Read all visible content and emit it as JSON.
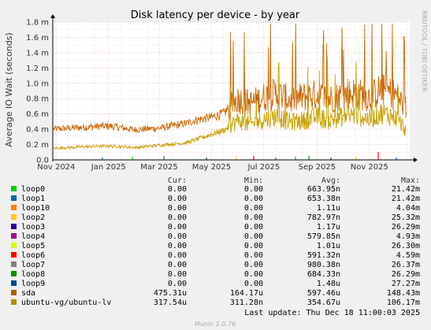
{
  "chart_data": {
    "type": "line",
    "title": "Disk latency per device - by year",
    "ylabel": "Average IO Wait (seconds)",
    "side_label": "RRDTOOL / TOBI OETIKER",
    "ylim": [
      0,
      1.8
    ],
    "y_ticks": [
      {
        "value": 0,
        "label": "0.0"
      },
      {
        "value": 0.2,
        "label": "0.2 m"
      },
      {
        "value": 0.4,
        "label": "0.4 m"
      },
      {
        "value": 0.6,
        "label": "0.6 m"
      },
      {
        "value": 0.8,
        "label": "0.8 m"
      },
      {
        "value": 1.0,
        "label": "1.0 m"
      },
      {
        "value": 1.2,
        "label": "1.2 m"
      },
      {
        "value": 1.4,
        "label": "1.4 m"
      },
      {
        "value": 1.6,
        "label": "1.6 m"
      },
      {
        "value": 1.8,
        "label": "1.8 m"
      }
    ],
    "x_range": [
      "2024-10-28",
      "2025-12-18"
    ],
    "x_ticks": [
      {
        "date": "2024-11-01",
        "label": "Nov 2024"
      },
      {
        "date": "2025-01-01",
        "label": "Jan 2025"
      },
      {
        "date": "2025-03-01",
        "label": "Mar 2025"
      },
      {
        "date": "2025-05-01",
        "label": "May 2025"
      },
      {
        "date": "2025-07-01",
        "label": "Jul 2025"
      },
      {
        "date": "2025-09-01",
        "label": "Sep 2025"
      },
      {
        "date": "2025-11-01",
        "label": "Nov 2025"
      }
    ],
    "grid": true,
    "series": [
      {
        "name": "sda",
        "color": "#cc6600",
        "x": [
          "2024-11-01",
          "2024-12-01",
          "2025-01-01",
          "2025-02-01",
          "2025-03-01",
          "2025-04-01",
          "2025-04-15",
          "2025-05-01",
          "2025-05-15",
          "2025-06-01",
          "2025-06-15",
          "2025-07-01",
          "2025-07-15",
          "2025-08-01",
          "2025-08-15",
          "2025-09-01",
          "2025-09-15",
          "2025-10-01",
          "2025-10-15",
          "2025-11-01",
          "2025-11-15",
          "2025-12-01",
          "2025-12-18"
        ],
        "values": [
          0.4,
          0.42,
          0.44,
          0.39,
          0.41,
          0.47,
          0.52,
          0.55,
          0.6,
          0.78,
          0.72,
          0.8,
          0.85,
          0.76,
          0.8,
          0.83,
          0.78,
          0.82,
          0.86,
          0.8,
          0.9,
          0.84,
          0.6
        ]
      },
      {
        "name": "ubuntu-vg/ubuntu-lv",
        "color": "#c8a000",
        "x": [
          "2024-11-01",
          "2024-12-01",
          "2025-01-01",
          "2025-02-01",
          "2025-03-01",
          "2025-04-01",
          "2025-04-15",
          "2025-05-01",
          "2025-05-15",
          "2025-06-01",
          "2025-06-15",
          "2025-07-01",
          "2025-07-15",
          "2025-08-01",
          "2025-08-15",
          "2025-09-01",
          "2025-09-15",
          "2025-10-01",
          "2025-10-15",
          "2025-11-01",
          "2025-11-15",
          "2025-12-01",
          "2025-12-18"
        ],
        "values": [
          0.15,
          0.17,
          0.18,
          0.16,
          0.19,
          0.22,
          0.27,
          0.33,
          0.38,
          0.5,
          0.45,
          0.52,
          0.56,
          0.48,
          0.5,
          0.55,
          0.5,
          0.55,
          0.58,
          0.52,
          0.6,
          0.55,
          0.32
        ]
      }
    ],
    "legend": {
      "headers": {
        "cur": "Cur:",
        "min": "Min:",
        "avg": "Avg:",
        "max": "Max:"
      },
      "rows": [
        {
          "name": "loop0",
          "color": "#00cc00",
          "cur": "0.00",
          "min": "0.00",
          "avg": "663.95n",
          "max": "21.42m"
        },
        {
          "name": "loop1",
          "color": "#0066b3",
          "cur": "0.00",
          "min": "0.00",
          "avg": "653.38n",
          "max": "21.42m"
        },
        {
          "name": "loop10",
          "color": "#ff8000",
          "cur": "0.00",
          "min": "0.00",
          "avg": "1.11u",
          "max": "4.04m"
        },
        {
          "name": "loop2",
          "color": "#ffcc00",
          "cur": "0.00",
          "min": "0.00",
          "avg": "782.97n",
          "max": "25.32m"
        },
        {
          "name": "loop3",
          "color": "#330099",
          "cur": "0.00",
          "min": "0.00",
          "avg": "1.17u",
          "max": "26.29m"
        },
        {
          "name": "loop4",
          "color": "#990099",
          "cur": "0.00",
          "min": "0.00",
          "avg": "579.85n",
          "max": "4.93m"
        },
        {
          "name": "loop5",
          "color": "#ccff00",
          "cur": "0.00",
          "min": "0.00",
          "avg": "1.01u",
          "max": "26.30m"
        },
        {
          "name": "loop6",
          "color": "#ff0000",
          "cur": "0.00",
          "min": "0.00",
          "avg": "591.32n",
          "max": "4.59m"
        },
        {
          "name": "loop7",
          "color": "#808080",
          "cur": "0.00",
          "min": "0.00",
          "avg": "980.38n",
          "max": "26.37m"
        },
        {
          "name": "loop8",
          "color": "#008f00",
          "cur": "0.00",
          "min": "0.00",
          "avg": "684.33n",
          "max": "26.29m"
        },
        {
          "name": "loop9",
          "color": "#00487d",
          "cur": "0.00",
          "min": "0.00",
          "avg": "1.48u",
          "max": "27.27m"
        },
        {
          "name": "sda",
          "color": "#b35a00",
          "cur": "475.31u",
          "min": "164.17u",
          "avg": "597.46u",
          "max": "148.43m"
        },
        {
          "name": "ubuntu-vg/ubuntu-lv",
          "color": "#b38f00",
          "cur": "317.54u",
          "min": "311.28n",
          "avg": "354.67u",
          "max": "106.17m"
        }
      ]
    },
    "last_update": "Last update: Thu Dec 18 11:00:03 2025",
    "footer": "Munin 2.0.76"
  }
}
